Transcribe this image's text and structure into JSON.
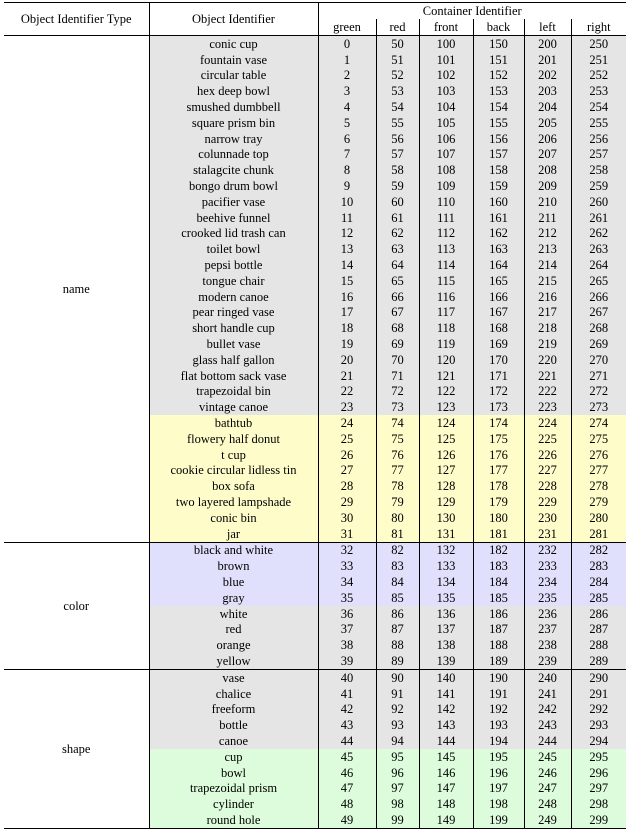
{
  "header": {
    "type_label": "Object Identifier Type",
    "obj_label": "Object Identifier",
    "container_label": "Container Identifier",
    "columns": [
      "green",
      "red",
      "front",
      "back",
      "left",
      "right"
    ]
  },
  "colors": {
    "gray": "#e5e5e5",
    "yellow": "#fefdca",
    "blue": "#e0e0fc",
    "green": "#dcfcdc"
  },
  "groups": [
    {
      "type": "name",
      "rows": [
        {
          "obj": "conic cup",
          "vals": [
            "0",
            "50",
            "100",
            "150",
            "200",
            "250"
          ],
          "color": "gray"
        },
        {
          "obj": "fountain vase",
          "vals": [
            "1",
            "51",
            "101",
            "151",
            "201",
            "251"
          ],
          "color": "gray"
        },
        {
          "obj": "circular table",
          "vals": [
            "2",
            "52",
            "102",
            "152",
            "202",
            "252"
          ],
          "color": "gray"
        },
        {
          "obj": "hex deep bowl",
          "vals": [
            "3",
            "53",
            "103",
            "153",
            "203",
            "253"
          ],
          "color": "gray"
        },
        {
          "obj": "smushed dumbbell",
          "vals": [
            "4",
            "54",
            "104",
            "154",
            "204",
            "254"
          ],
          "color": "gray"
        },
        {
          "obj": "square prism bin",
          "vals": [
            "5",
            "55",
            "105",
            "155",
            "205",
            "255"
          ],
          "color": "gray"
        },
        {
          "obj": "narrow tray",
          "vals": [
            "6",
            "56",
            "106",
            "156",
            "206",
            "256"
          ],
          "color": "gray"
        },
        {
          "obj": "colunnade top",
          "vals": [
            "7",
            "57",
            "107",
            "157",
            "207",
            "257"
          ],
          "color": "gray"
        },
        {
          "obj": "stalagcite chunk",
          "vals": [
            "8",
            "58",
            "108",
            "158",
            "208",
            "258"
          ],
          "color": "gray"
        },
        {
          "obj": "bongo drum bowl",
          "vals": [
            "9",
            "59",
            "109",
            "159",
            "209",
            "259"
          ],
          "color": "gray"
        },
        {
          "obj": "pacifier vase",
          "vals": [
            "10",
            "60",
            "110",
            "160",
            "210",
            "260"
          ],
          "color": "gray"
        },
        {
          "obj": "beehive funnel",
          "vals": [
            "11",
            "61",
            "111",
            "161",
            "211",
            "261"
          ],
          "color": "gray"
        },
        {
          "obj": "crooked lid trash can",
          "vals": [
            "12",
            "62",
            "112",
            "162",
            "212",
            "262"
          ],
          "color": "gray"
        },
        {
          "obj": "toilet bowl",
          "vals": [
            "13",
            "63",
            "113",
            "163",
            "213",
            "263"
          ],
          "color": "gray"
        },
        {
          "obj": "pepsi bottle",
          "vals": [
            "14",
            "64",
            "114",
            "164",
            "214",
            "264"
          ],
          "color": "gray"
        },
        {
          "obj": "tongue chair",
          "vals": [
            "15",
            "65",
            "115",
            "165",
            "215",
            "265"
          ],
          "color": "gray"
        },
        {
          "obj": "modern canoe",
          "vals": [
            "16",
            "66",
            "116",
            "166",
            "216",
            "266"
          ],
          "color": "gray"
        },
        {
          "obj": "pear ringed vase",
          "vals": [
            "17",
            "67",
            "117",
            "167",
            "217",
            "267"
          ],
          "color": "gray"
        },
        {
          "obj": "short handle cup",
          "vals": [
            "18",
            "68",
            "118",
            "168",
            "218",
            "268"
          ],
          "color": "gray"
        },
        {
          "obj": "bullet vase",
          "vals": [
            "19",
            "69",
            "119",
            "169",
            "219",
            "269"
          ],
          "color": "gray"
        },
        {
          "obj": "glass half gallon",
          "vals": [
            "20",
            "70",
            "120",
            "170",
            "220",
            "270"
          ],
          "color": "gray"
        },
        {
          "obj": "flat bottom sack vase",
          "vals": [
            "21",
            "71",
            "121",
            "171",
            "221",
            "271"
          ],
          "color": "gray"
        },
        {
          "obj": "trapezoidal bin",
          "vals": [
            "22",
            "72",
            "122",
            "172",
            "222",
            "272"
          ],
          "color": "gray"
        },
        {
          "obj": "vintage canoe",
          "vals": [
            "23",
            "73",
            "123",
            "173",
            "223",
            "273"
          ],
          "color": "gray"
        },
        {
          "obj": "bathtub",
          "vals": [
            "24",
            "74",
            "124",
            "174",
            "224",
            "274"
          ],
          "color": "yellow"
        },
        {
          "obj": "flowery half donut",
          "vals": [
            "25",
            "75",
            "125",
            "175",
            "225",
            "275"
          ],
          "color": "yellow"
        },
        {
          "obj": "t cup",
          "vals": [
            "26",
            "76",
            "126",
            "176",
            "226",
            "276"
          ],
          "color": "yellow"
        },
        {
          "obj": "cookie circular lidless tin",
          "vals": [
            "27",
            "77",
            "127",
            "177",
            "227",
            "277"
          ],
          "color": "yellow"
        },
        {
          "obj": "box sofa",
          "vals": [
            "28",
            "78",
            "128",
            "178",
            "228",
            "278"
          ],
          "color": "yellow"
        },
        {
          "obj": "two layered lampshade",
          "vals": [
            "29",
            "79",
            "129",
            "179",
            "229",
            "279"
          ],
          "color": "yellow"
        },
        {
          "obj": "conic bin",
          "vals": [
            "30",
            "80",
            "130",
            "180",
            "230",
            "280"
          ],
          "color": "yellow"
        },
        {
          "obj": "jar",
          "vals": [
            "31",
            "81",
            "131",
            "181",
            "231",
            "281"
          ],
          "color": "yellow"
        }
      ]
    },
    {
      "type": "color",
      "rows": [
        {
          "obj": "black and white",
          "vals": [
            "32",
            "82",
            "132",
            "182",
            "232",
            "282"
          ],
          "color": "blue"
        },
        {
          "obj": "brown",
          "vals": [
            "33",
            "83",
            "133",
            "183",
            "233",
            "283"
          ],
          "color": "blue"
        },
        {
          "obj": "blue",
          "vals": [
            "34",
            "84",
            "134",
            "184",
            "234",
            "284"
          ],
          "color": "blue"
        },
        {
          "obj": "gray",
          "vals": [
            "35",
            "85",
            "135",
            "185",
            "235",
            "285"
          ],
          "color": "blue"
        },
        {
          "obj": "white",
          "vals": [
            "36",
            "86",
            "136",
            "186",
            "236",
            "286"
          ],
          "color": "gray"
        },
        {
          "obj": "red",
          "vals": [
            "37",
            "87",
            "137",
            "187",
            "237",
            "287"
          ],
          "color": "gray"
        },
        {
          "obj": "orange",
          "vals": [
            "38",
            "88",
            "138",
            "188",
            "238",
            "288"
          ],
          "color": "gray"
        },
        {
          "obj": "yellow",
          "vals": [
            "39",
            "89",
            "139",
            "189",
            "239",
            "289"
          ],
          "color": "gray"
        }
      ]
    },
    {
      "type": "shape",
      "rows": [
        {
          "obj": "vase",
          "vals": [
            "40",
            "90",
            "140",
            "190",
            "240",
            "290"
          ],
          "color": "gray"
        },
        {
          "obj": "chalice",
          "vals": [
            "41",
            "91",
            "141",
            "191",
            "241",
            "291"
          ],
          "color": "gray"
        },
        {
          "obj": "freeform",
          "vals": [
            "42",
            "92",
            "142",
            "192",
            "242",
            "292"
          ],
          "color": "gray"
        },
        {
          "obj": "bottle",
          "vals": [
            "43",
            "93",
            "143",
            "193",
            "243",
            "293"
          ],
          "color": "gray"
        },
        {
          "obj": "canoe",
          "vals": [
            "44",
            "94",
            "144",
            "194",
            "244",
            "294"
          ],
          "color": "gray"
        },
        {
          "obj": "cup",
          "vals": [
            "45",
            "95",
            "145",
            "195",
            "245",
            "295"
          ],
          "color": "green"
        },
        {
          "obj": "bowl",
          "vals": [
            "46",
            "96",
            "146",
            "196",
            "246",
            "296"
          ],
          "color": "green"
        },
        {
          "obj": "trapezoidal prism",
          "vals": [
            "47",
            "97",
            "147",
            "197",
            "247",
            "297"
          ],
          "color": "green"
        },
        {
          "obj": "cylinder",
          "vals": [
            "48",
            "98",
            "148",
            "198",
            "248",
            "298"
          ],
          "color": "green"
        },
        {
          "obj": "round hole",
          "vals": [
            "49",
            "99",
            "149",
            "199",
            "249",
            "299"
          ],
          "color": "green"
        }
      ]
    }
  ]
}
